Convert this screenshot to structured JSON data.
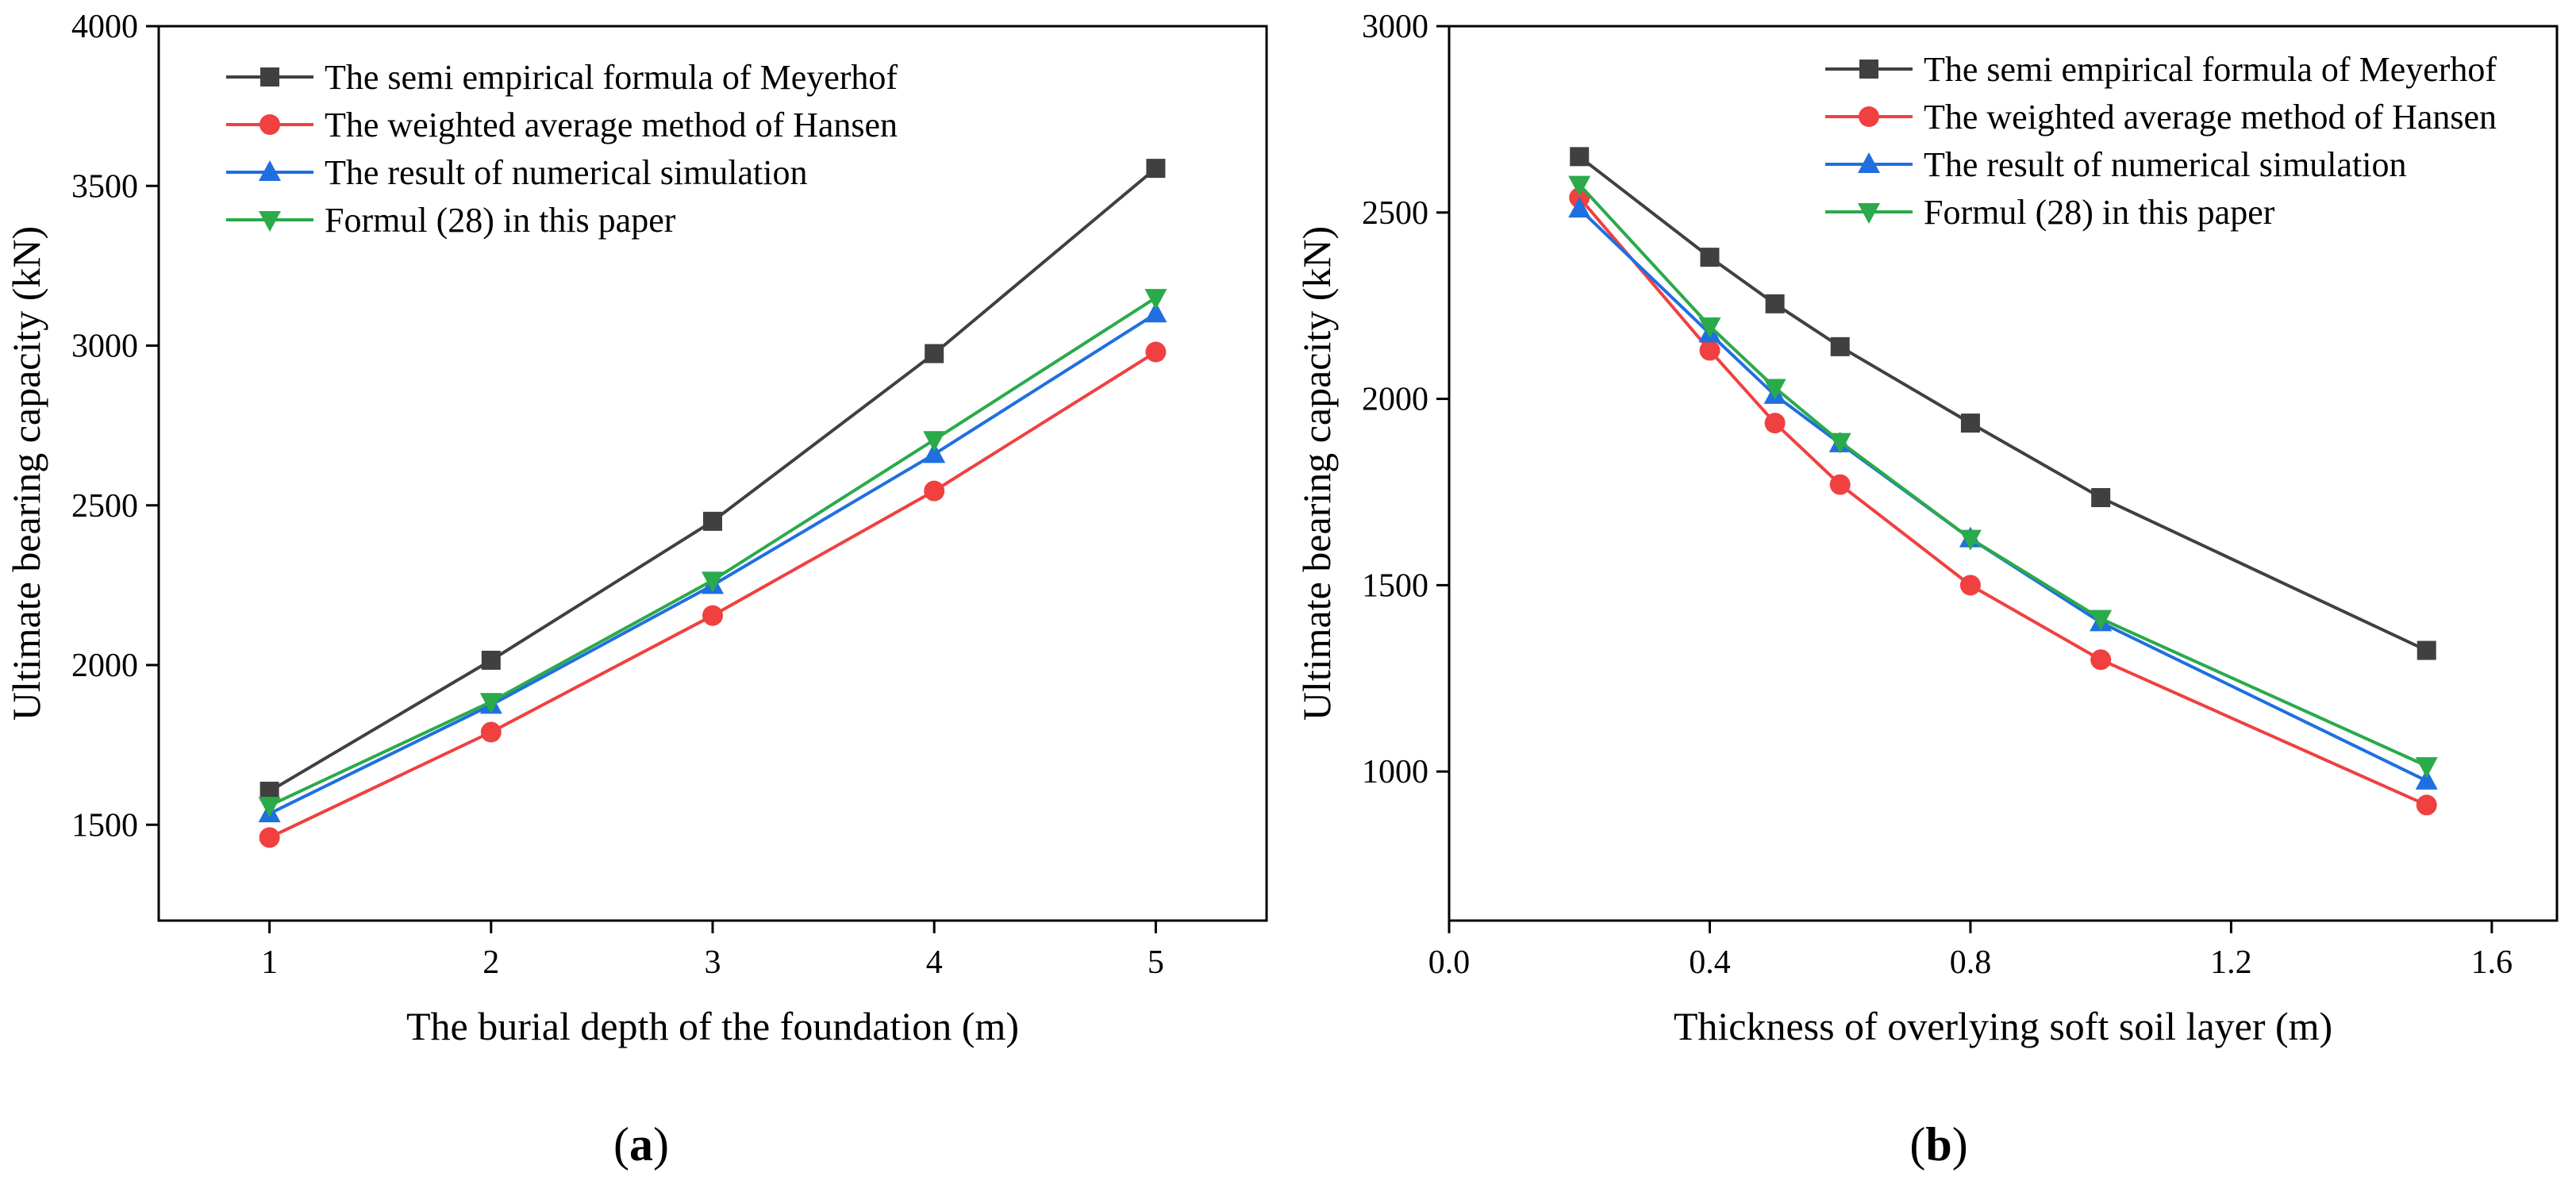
{
  "chart_data": [
    {
      "type": "line",
      "panel": "a",
      "caption_letter": "a",
      "xlabel": "The burial depth of the foundation (m)",
      "ylabel": "Ultimate bearing capacity (kN)",
      "xlim": [
        0.5,
        5.5
      ],
      "ylim": [
        1200,
        4000
      ],
      "xticks": [
        1,
        2,
        3,
        4,
        5
      ],
      "yticks": [
        1500,
        2000,
        2500,
        3000,
        3500,
        4000
      ],
      "xtick_labels": [
        "1",
        "2",
        "3",
        "4",
        "5"
      ],
      "ytick_labels": [
        "1500",
        "2000",
        "2500",
        "3000",
        "3500",
        "4000"
      ],
      "legend_position": "top-left",
      "x": [
        1,
        2,
        3,
        4,
        5
      ],
      "series": [
        {
          "name": "The semi empirical formula of Meyerhof",
          "color": "#404040",
          "marker": "square",
          "values": [
            1605,
            2015,
            2450,
            2975,
            3555
          ]
        },
        {
          "name": "The weighted average method of Hansen",
          "color": "#f04040",
          "marker": "circle",
          "values": [
            1460,
            1790,
            2155,
            2545,
            2980
          ]
        },
        {
          "name": "The result of numerical simulation",
          "color": "#1f6fe0",
          "marker": "triangle-up",
          "values": [
            1535,
            1875,
            2250,
            2660,
            3100
          ]
        },
        {
          "name": "Formul (28) in this paper",
          "color": "#2aaa4a",
          "marker": "triangle-down",
          "values": [
            1560,
            1885,
            2265,
            2705,
            3150
          ]
        }
      ]
    },
    {
      "type": "line",
      "panel": "b",
      "caption_letter": "b",
      "xlabel": "Thickness of overlying soft soil layer (m)",
      "ylabel": "Ultimate bearing capacity (kN)",
      "xlim": [
        0.0,
        1.7
      ],
      "ylim": [
        600,
        3000
      ],
      "xticks": [
        0.0,
        0.4,
        0.8,
        1.2,
        1.6
      ],
      "yticks": [
        1000,
        1500,
        2000,
        2500,
        3000
      ],
      "xtick_labels": [
        "0.0",
        "0.4",
        "0.8",
        "1.2",
        "1.6"
      ],
      "ytick_labels": [
        "1000",
        "1500",
        "2000",
        "2500",
        "3000"
      ],
      "legend_position": "top-right",
      "x": [
        0.2,
        0.4,
        0.5,
        0.6,
        0.8,
        1.0,
        1.5
      ],
      "series": [
        {
          "name": "The semi empirical formula of Meyerhof",
          "color": "#404040",
          "marker": "square",
          "values": [
            2650,
            2380,
            2255,
            2140,
            1935,
            1735,
            1325
          ]
        },
        {
          "name": "The weighted average method of Hansen",
          "color": "#f04040",
          "marker": "circle",
          "values": [
            2540,
            2130,
            1935,
            1770,
            1500,
            1300,
            910
          ]
        },
        {
          "name": "The result of numerical simulation",
          "color": "#1f6fe0",
          "marker": "triangle-up",
          "values": [
            2510,
            2175,
            2010,
            1880,
            1625,
            1400,
            975
          ]
        },
        {
          "name": "Formul (28) in this paper",
          "color": "#2aaa4a",
          "marker": "triangle-down",
          "values": [
            2575,
            2195,
            2030,
            1885,
            1625,
            1410,
            1015
          ]
        }
      ]
    }
  ]
}
